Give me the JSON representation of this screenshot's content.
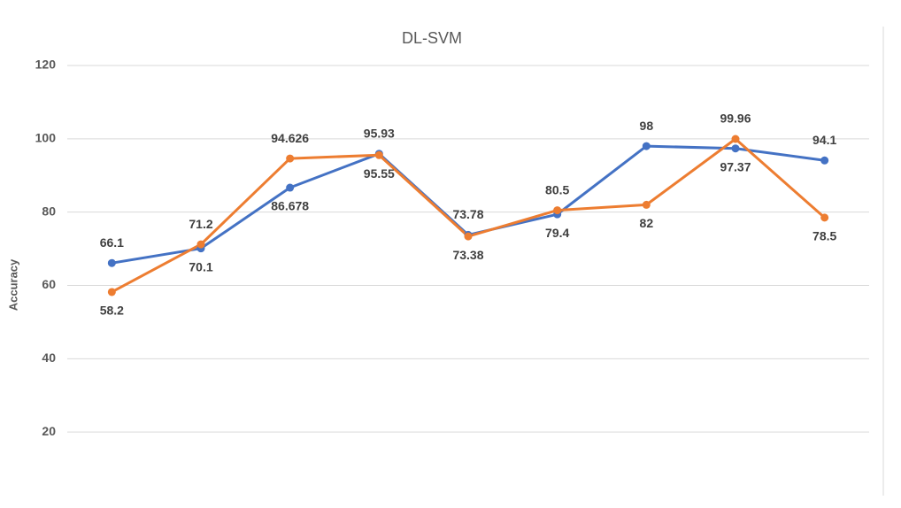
{
  "chart_data": {
    "type": "line",
    "title": "DL-SVM",
    "y_label": "Accuracy",
    "categories": [
      null,
      null,
      null,
      null,
      null,
      null,
      null,
      null,
      null
    ],
    "series": [
      {
        "color": "#4472c4",
        "values": [
          66.1,
          70.1,
          86.678,
          95.93,
          73.78,
          79.4,
          98,
          97.37,
          94.1
        ]
      },
      {
        "color": "#ed7d31",
        "values": [
          58.2,
          71.2,
          94.626,
          95.55,
          73.38,
          80.5,
          82,
          99.96,
          78.5
        ]
      }
    ],
    "ylim": [
      0,
      120
    ],
    "yticks": [
      20,
      40,
      60,
      80,
      100,
      120
    ],
    "grid": true
  }
}
